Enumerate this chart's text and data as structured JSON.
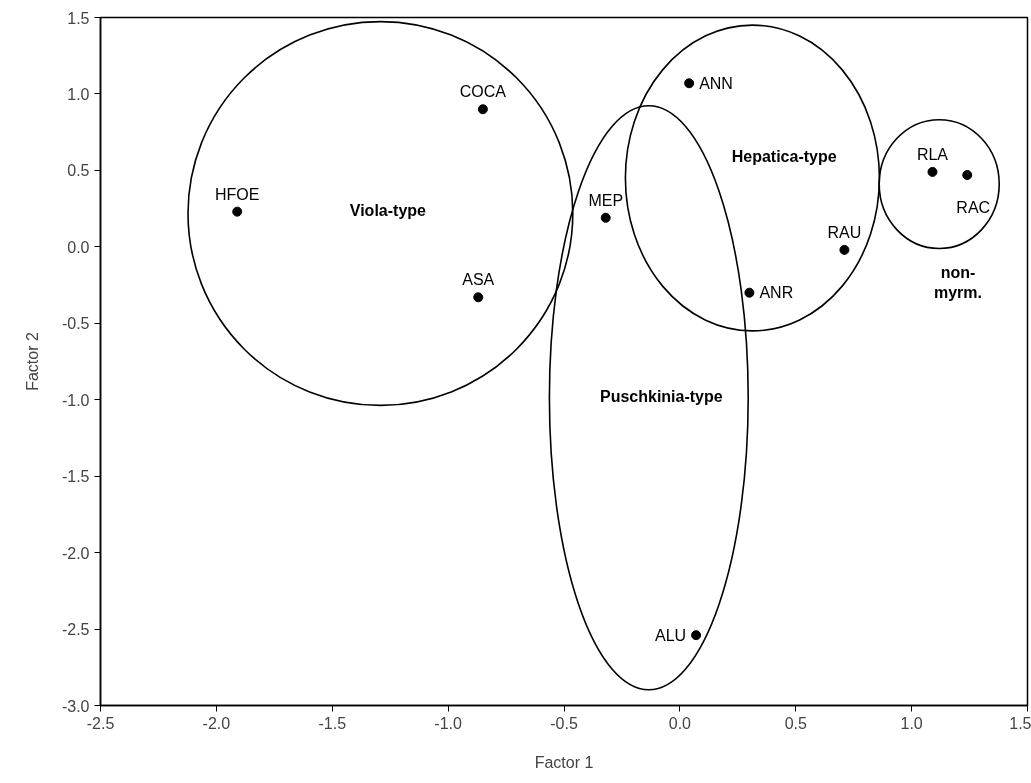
{
  "chart_data": {
    "type": "scatter",
    "xlabel": "Factor 1",
    "ylabel": "Factor 2",
    "xlim": [
      -2.5,
      1.5
    ],
    "ylim": [
      -3.0,
      1.5
    ],
    "xticks": [
      -2.5,
      {
        "value": -2,
        "label": "-2.0"
      },
      -1.5,
      {
        "value": -1,
        "label": "-1.0"
      },
      -0.5,
      {
        "value": 0,
        "label": "0.0"
      },
      0.5,
      {
        "value": 1,
        "label": "1.0"
      },
      1.5
    ],
    "yticks": [
      {
        "value": -3,
        "label": "-3.0"
      },
      -2.5,
      {
        "value": -2,
        "label": "-2.0"
      },
      -1.5,
      {
        "value": -1,
        "label": "-1.0"
      },
      -0.5,
      {
        "value": 0,
        "label": "0.0"
      },
      0.5,
      {
        "value": 1,
        "label": "1.0"
      },
      1.5
    ],
    "marker": "circle",
    "series": [
      {
        "color": "#000000",
        "x": [
          -1.91,
          -0.85,
          -0.87,
          -0.32,
          0.04,
          0.3,
          0.71,
          1.09,
          1.24,
          0.07
        ],
        "values": [
          0.23,
          0.9,
          -0.33,
          0.19,
          1.07,
          -0.3,
          -0.02,
          0.49,
          0.47,
          -2.54
        ]
      }
    ],
    "annotations": [
      {
        "text": "HFOE",
        "x": -1.91,
        "y": 0.23
      },
      {
        "text": "COCA",
        "x": -0.85,
        "y": 0.9
      },
      {
        "text": "ASA",
        "x": -0.87,
        "y": -0.33
      },
      {
        "text": "MEP",
        "x": -0.32,
        "y": 0.19
      },
      {
        "text": "ANN",
        "x": 0.04,
        "y": 1.07
      },
      {
        "text": "ANR",
        "x": 0.3,
        "y": -0.3
      },
      {
        "text": "RAU",
        "x": 0.71,
        "y": -0.02
      },
      {
        "text": "RLA",
        "x": 1.09,
        "y": 0.49
      },
      {
        "text": "RAC",
        "x": 1.24,
        "y": 0.47
      },
      {
        "text": "ALU",
        "x": 0.07,
        "y": -2.54
      },
      "Viola-type",
      "Hepatica-type",
      "Puschkinia-type",
      "non-\nmyrm."
    ]
  }
}
